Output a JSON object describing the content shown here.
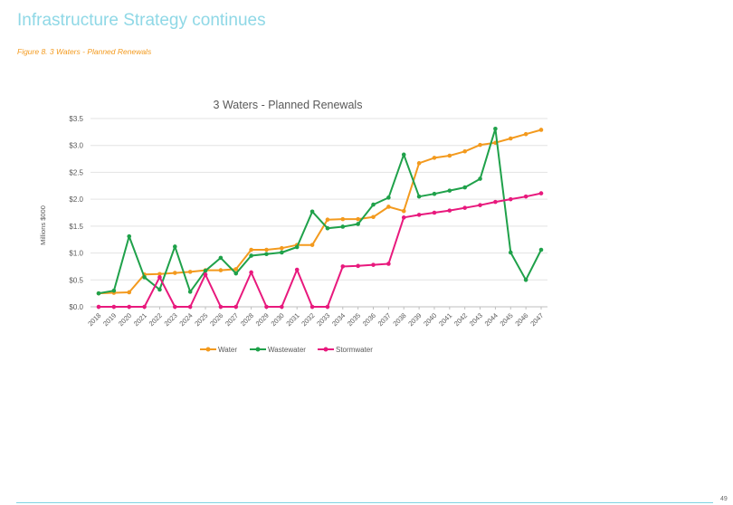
{
  "header": {
    "title": "Infrastructure Strategy continues"
  },
  "figure": {
    "caption": "Figure 8.  3 Waters - Planned Renewals"
  },
  "footer": {
    "page_number": "49"
  },
  "colors": {
    "water": "#f39a1e",
    "wastewater": "#1fa14a",
    "stormwater": "#e8197d",
    "header": "#8fd8e6"
  },
  "chart_data": {
    "type": "line",
    "title": "3 Waters - Planned Renewals",
    "xlabel": "",
    "ylabel": "Millions  $000",
    "ylim": [
      0,
      3.5
    ],
    "yticks": [
      "$0.0",
      "$0.5",
      "$1.0",
      "$1.5",
      "$2.0",
      "$2.5",
      "$3.0",
      "$3.5"
    ],
    "grid": true,
    "legend_position": "bottom",
    "categories": [
      "2018",
      "2019",
      "2020",
      "2021",
      "2022",
      "2023",
      "2024",
      "2025",
      "2026",
      "2027",
      "2028",
      "2029",
      "2030",
      "2031",
      "2032",
      "2033",
      "2034",
      "2035",
      "2036",
      "2037",
      "2038",
      "2039",
      "2040",
      "2041",
      "2042",
      "2043",
      "2044",
      "2045",
      "2046",
      "2047"
    ],
    "series": [
      {
        "name": "Water",
        "color": "#f39a1e",
        "values": [
          0.25,
          0.26,
          0.27,
          0.6,
          0.61,
          0.63,
          0.65,
          0.68,
          0.68,
          0.7,
          1.06,
          1.06,
          1.09,
          1.15,
          1.15,
          1.62,
          1.63,
          1.63,
          1.67,
          1.86,
          1.78,
          2.67,
          2.77,
          2.81,
          2.89,
          3.01,
          3.05,
          3.13,
          3.21,
          3.29
        ]
      },
      {
        "name": "Wastewater",
        "color": "#1fa14a",
        "values": [
          0.25,
          0.3,
          1.31,
          0.55,
          0.32,
          1.12,
          0.28,
          0.67,
          0.91,
          0.62,
          0.95,
          0.98,
          1.01,
          1.11,
          1.77,
          1.46,
          1.49,
          1.54,
          1.9,
          2.03,
          2.83,
          2.05,
          2.1,
          2.16,
          2.22,
          2.38,
          3.31,
          1.01,
          0.5,
          1.06
        ]
      },
      {
        "name": "Stormwater",
        "color": "#e8197d",
        "values": [
          0.0,
          0.0,
          0.0,
          0.0,
          0.55,
          0.0,
          0.0,
          0.6,
          0.0,
          0.0,
          0.64,
          0.0,
          0.0,
          0.69,
          0.0,
          0.0,
          0.75,
          0.76,
          0.78,
          0.8,
          1.66,
          1.71,
          1.75,
          1.79,
          1.84,
          1.89,
          1.95,
          2.0,
          2.05,
          2.11
        ]
      }
    ]
  }
}
